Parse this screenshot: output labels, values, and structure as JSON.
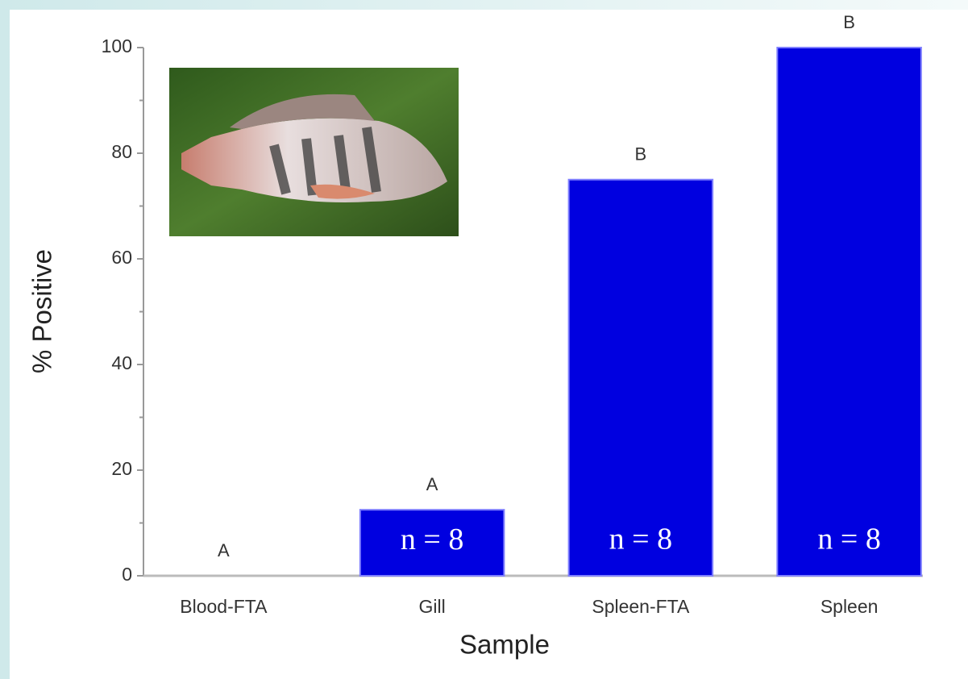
{
  "chart_data": {
    "type": "bar",
    "x_label": "Sample",
    "y_label": "% Positive",
    "categories": [
      "Blood-FTA",
      "Gill",
      "Spleen-FTA",
      "Spleen"
    ],
    "values": [
      0,
      12.5,
      75,
      100
    ],
    "group_labels": [
      "A",
      "A",
      "B",
      "B"
    ],
    "n_labels": [
      null,
      "n = 8",
      "n = 8",
      "n = 8"
    ],
    "color": "#0000e0",
    "ylim": [
      0,
      100
    ],
    "yticks": [
      0,
      20,
      40,
      60,
      80,
      100
    ],
    "minor_yticks": [
      10,
      30,
      50,
      70,
      90
    ],
    "grid": false
  }
}
